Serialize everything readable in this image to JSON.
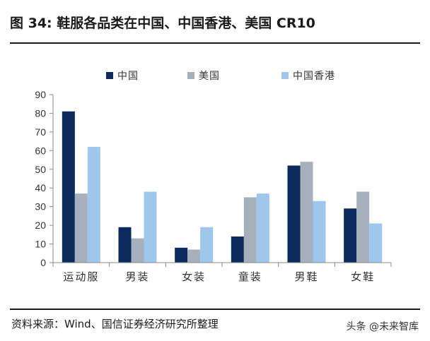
{
  "header": {
    "title": "图 34:  鞋服各品类在中国、中国香港、美国 CR10"
  },
  "footer": {
    "source": "资料来源：Wind、国信证券经济研究所整理",
    "watermark": "头条 @未来智库"
  },
  "colors": {
    "china": "#0d2a5c",
    "usa": "#a6afbc",
    "hongkong": "#9fc7ec",
    "axis": "#888888"
  },
  "chart_data": {
    "type": "bar",
    "title": "",
    "xlabel": "",
    "ylabel": "",
    "categories": [
      "运动服",
      "男装",
      "女装",
      "童装",
      "男鞋",
      "女鞋"
    ],
    "series": [
      {
        "name": "中国",
        "color": "#0d2a5c",
        "values": [
          81,
          19,
          8,
          14,
          52,
          29
        ]
      },
      {
        "name": "美国",
        "color": "#a6afbc",
        "values": [
          37,
          13,
          7,
          35,
          54,
          38
        ]
      },
      {
        "name": "中国香港",
        "color": "#9fc7ec",
        "values": [
          62,
          38,
          19,
          37,
          33,
          21
        ]
      }
    ],
    "ylim": [
      0,
      90
    ],
    "yticks": [
      0,
      10,
      20,
      30,
      40,
      50,
      60,
      70,
      80,
      90
    ],
    "grid": false,
    "legend": "top"
  }
}
